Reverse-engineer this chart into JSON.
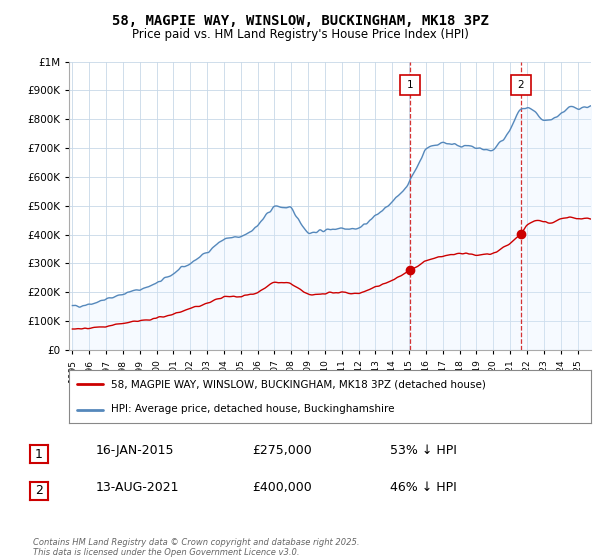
{
  "title": "58, MAGPIE WAY, WINSLOW, BUCKINGHAM, MK18 3PZ",
  "subtitle": "Price paid vs. HM Land Registry's House Price Index (HPI)",
  "title_fontsize": 10,
  "subtitle_fontsize": 8.5,
  "background_color": "#ffffff",
  "plot_bg_color": "#ffffff",
  "grid_color": "#c8d8e8",
  "legend_line1": "58, MAGPIE WAY, WINSLOW, BUCKINGHAM, MK18 3PZ (detached house)",
  "legend_line2": "HPI: Average price, detached house, Buckinghamshire",
  "sale1_label": "1",
  "sale1_date": "16-JAN-2015",
  "sale1_price": "£275,000",
  "sale1_hpi": "53% ↓ HPI",
  "sale1_year": 2015.04,
  "sale1_value": 275000,
  "sale2_label": "2",
  "sale2_date": "13-AUG-2021",
  "sale2_price": "£400,000",
  "sale2_hpi": "46% ↓ HPI",
  "sale2_year": 2021.62,
  "sale2_value": 400000,
  "footer": "Contains HM Land Registry data © Crown copyright and database right 2025.\nThis data is licensed under the Open Government Licence v3.0.",
  "ylim": [
    0,
    1000000
  ],
  "xlim_start": 1994.8,
  "xlim_end": 2025.8,
  "red_color": "#cc0000",
  "blue_color": "#5588bb",
  "blue_fill_color": "#ddeeff",
  "marker_box_color": "#cc0000"
}
